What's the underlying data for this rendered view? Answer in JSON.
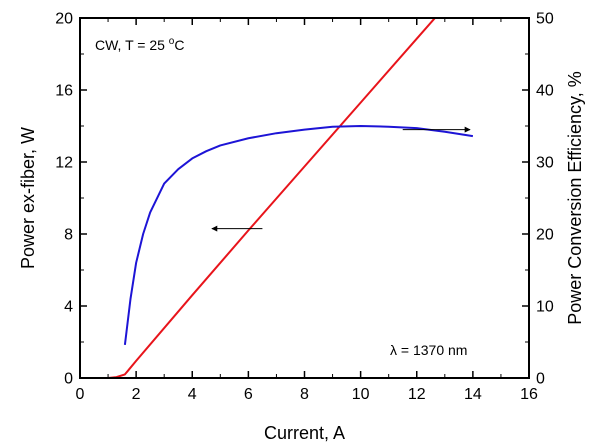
{
  "chart_data": {
    "type": "line",
    "xlabel": "Current, A",
    "ylabel": "Power ex-fiber, W",
    "y2label": "Power Conversion Efficiency, %",
    "xlim": [
      0,
      16
    ],
    "ylim": [
      0,
      20
    ],
    "y2lim": [
      0,
      50
    ],
    "x_ticks": [
      0,
      2,
      4,
      6,
      8,
      10,
      12,
      14,
      16
    ],
    "y_ticks": [
      0,
      4,
      8,
      12,
      16,
      20
    ],
    "y2_ticks": [
      0,
      10,
      20,
      30,
      40,
      50
    ],
    "grid": false,
    "annotations": {
      "conditions_main": "CW, T = 25 ",
      "conditions_sup": "o",
      "conditions_unit": "C",
      "wavelength": "λ = 1370 nm"
    },
    "series": [
      {
        "axis": "left",
        "color": "#e8141b",
        "x": [
          1.0,
          1.3,
          1.6,
          2,
          4,
          6,
          8,
          10,
          12,
          14
        ],
        "y": [
          0,
          0.05,
          0.2,
          0.95,
          4.6,
          8.2,
          11.75,
          15.3,
          18.85,
          22.4
        ]
      },
      {
        "axis": "right",
        "color": "#1d14d6",
        "x": [
          1.6,
          1.8,
          2,
          2.25,
          2.5,
          3,
          3.5,
          4,
          4.5,
          5,
          6,
          7,
          8,
          9,
          10,
          11,
          12,
          13,
          14
        ],
        "y": [
          4.6,
          11,
          16,
          20,
          23,
          27,
          29,
          30.5,
          31.5,
          32.3,
          33.3,
          34.0,
          34.5,
          34.9,
          35.0,
          34.9,
          34.7,
          34.2,
          33.6
        ]
      }
    ],
    "arrows": [
      {
        "from": [
          6.5,
          8.3
        ],
        "to": [
          4.7,
          8.3
        ],
        "axis": "left",
        "points_to": "left-axis"
      },
      {
        "from": [
          11.5,
          13.8
        ],
        "to": [
          13.9,
          13.8
        ],
        "axis": "left",
        "points_to": "right-axis"
      }
    ]
  }
}
